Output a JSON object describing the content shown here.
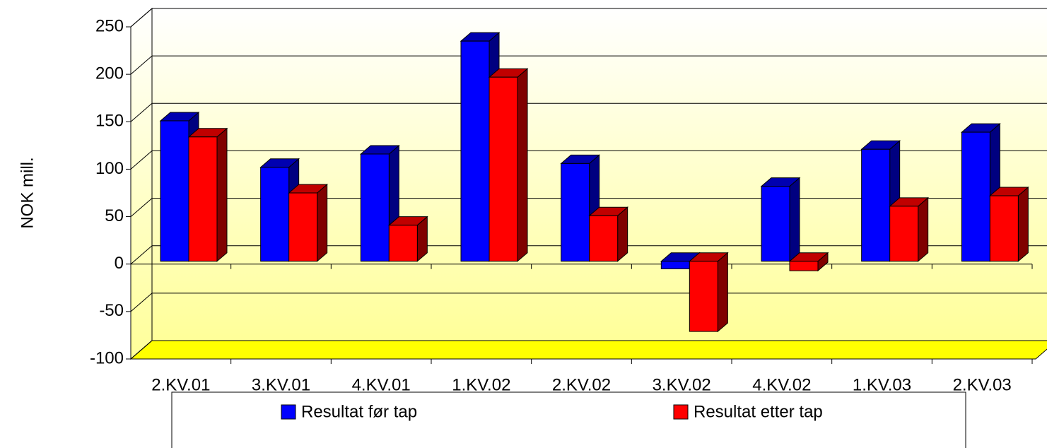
{
  "chart_data": {
    "type": "bar3d",
    "y_label": "NOK mill.",
    "categories": [
      "2.KV.01",
      "3.KV.01",
      "4.KV.01",
      "1.KV.02",
      "2.KV.02",
      "3.KV.02",
      "4.KV.02",
      "1.KV.03",
      "2.KV.03"
    ],
    "series": [
      {
        "name": "Resultat før tap",
        "color": "#0000ff",
        "side": "#000080",
        "top": "#0000b0",
        "values": [
          148,
          99,
          113,
          232,
          103,
          -8,
          79,
          118,
          136
        ]
      },
      {
        "name": "Resultat etter tap",
        "color": "#ff0000",
        "side": "#800000",
        "top": "#c00000",
        "values": [
          131,
          72,
          38,
          194,
          48,
          -74,
          -10,
          58,
          69
        ]
      }
    ],
    "ylim": [
      -100,
      250
    ],
    "yticks": [
      -100,
      -50,
      0,
      50,
      100,
      150,
      200,
      250
    ],
    "grid": true,
    "legend": "bottom"
  }
}
